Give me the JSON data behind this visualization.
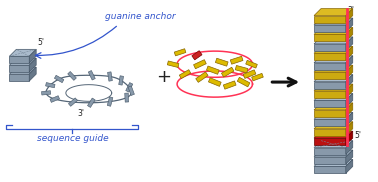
{
  "bg_color": "#ffffff",
  "text_guanine_anchor": "guanine anchor",
  "text_sequence_guide": "sequence guide",
  "text_5prime_left": "5'",
  "text_3prime_left": "3'",
  "text_5prime_right": "5'",
  "text_3prime_right": "3'",
  "text_plus": "+",
  "color_blue": "#3355cc",
  "color_red": "#cc2222",
  "color_yellow": "#ddbb00",
  "color_gray_light": "#aabbcc",
  "color_gray_mid": "#8899aa",
  "color_gray_dark": "#667788",
  "color_pink": "#ff3355",
  "color_black": "#111111",
  "color_edge": "#445566",
  "color_edge_dark": "#333333",
  "figw": 3.78,
  "figh": 1.82,
  "dpi": 100
}
